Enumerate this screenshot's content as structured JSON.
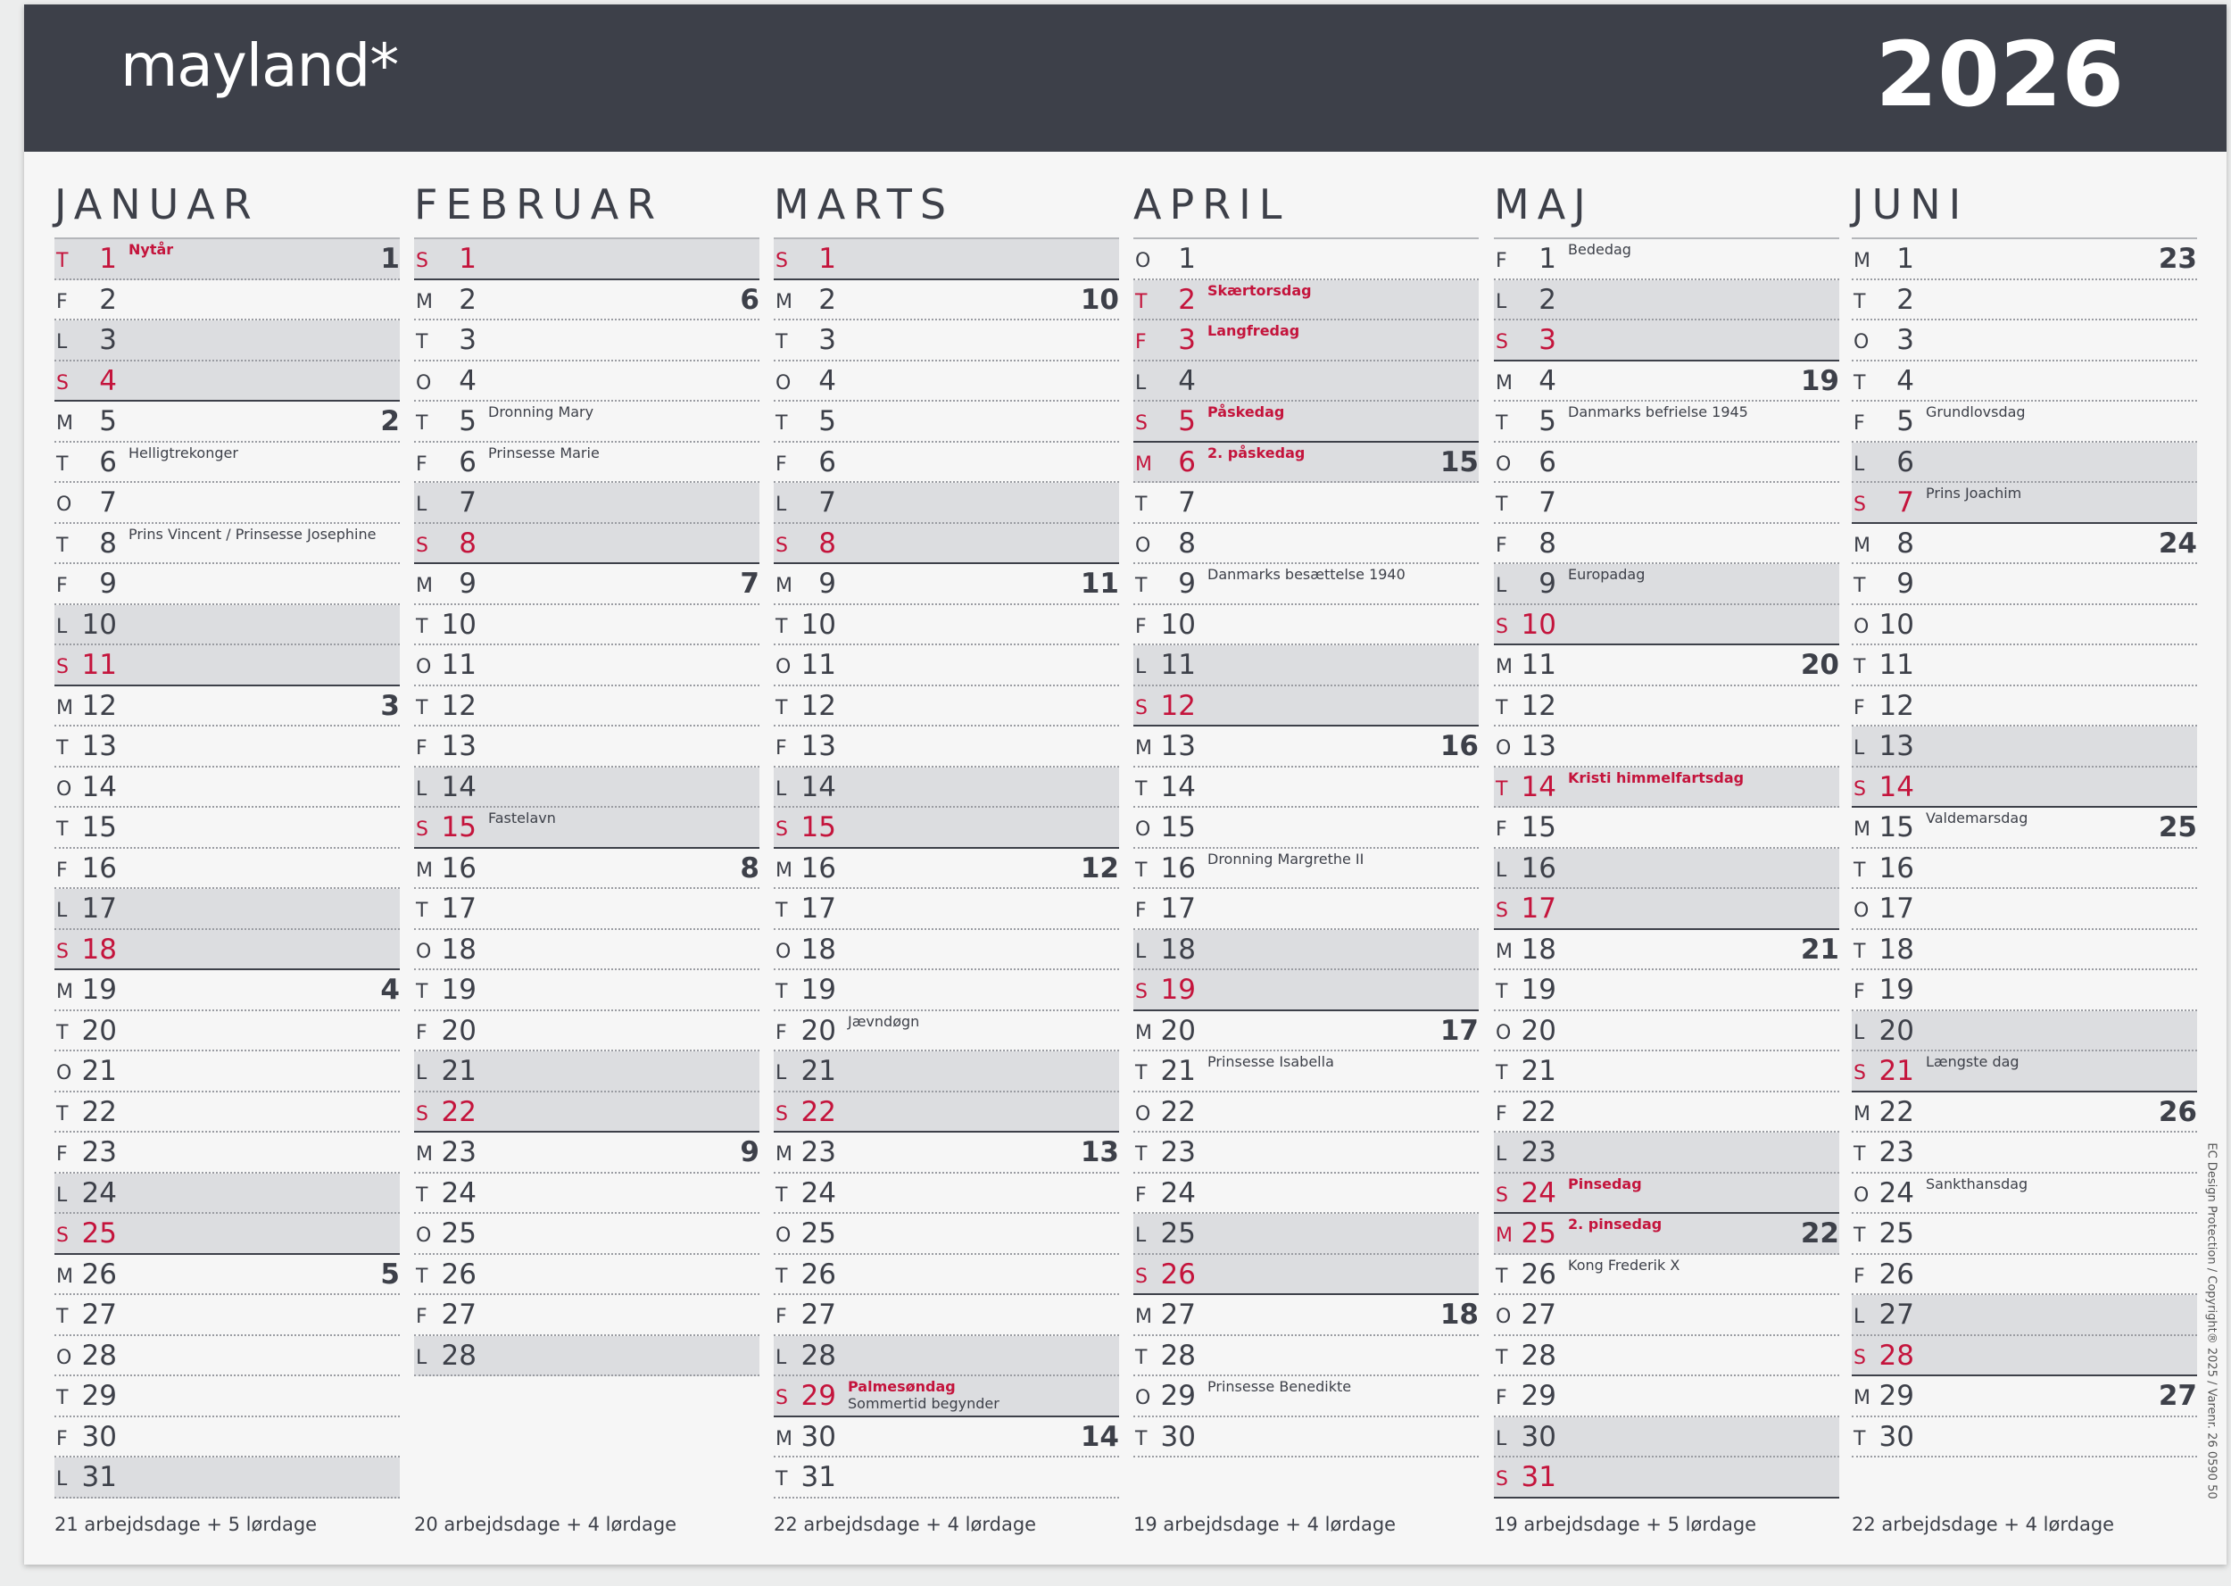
{
  "header": {
    "brand": "mayland*",
    "year": "2026"
  },
  "side_text": "EC Design Protection / Copyright® 2025 / Varenr. 26 0590 50",
  "months": [
    {
      "name": "JANUAR",
      "footer": "21 arbejdsdage + 5 lørdage",
      "days": [
        {
          "w": "T",
          "d": 1,
          "wk": 1,
          "note": "Nytår",
          "k": "hol"
        },
        {
          "w": "F",
          "d": 2
        },
        {
          "w": "L",
          "d": 3,
          "k": "sat"
        },
        {
          "w": "S",
          "d": 4,
          "k": "sun"
        },
        {
          "w": "M",
          "d": 5,
          "wk": 2
        },
        {
          "w": "T",
          "d": 6,
          "note": "Helligtrekonger"
        },
        {
          "w": "O",
          "d": 7
        },
        {
          "w": "T",
          "d": 8,
          "note": "Prins Vincent / Prinsesse Josephine"
        },
        {
          "w": "F",
          "d": 9
        },
        {
          "w": "L",
          "d": 10,
          "k": "sat"
        },
        {
          "w": "S",
          "d": 11,
          "k": "sun"
        },
        {
          "w": "M",
          "d": 12,
          "wk": 3
        },
        {
          "w": "T",
          "d": 13
        },
        {
          "w": "O",
          "d": 14
        },
        {
          "w": "T",
          "d": 15
        },
        {
          "w": "F",
          "d": 16
        },
        {
          "w": "L",
          "d": 17,
          "k": "sat"
        },
        {
          "w": "S",
          "d": 18,
          "k": "sun"
        },
        {
          "w": "M",
          "d": 19,
          "wk": 4
        },
        {
          "w": "T",
          "d": 20
        },
        {
          "w": "O",
          "d": 21
        },
        {
          "w": "T",
          "d": 22
        },
        {
          "w": "F",
          "d": 23
        },
        {
          "w": "L",
          "d": 24,
          "k": "sat"
        },
        {
          "w": "S",
          "d": 25,
          "k": "sun"
        },
        {
          "w": "M",
          "d": 26,
          "wk": 5
        },
        {
          "w": "T",
          "d": 27
        },
        {
          "w": "O",
          "d": 28
        },
        {
          "w": "T",
          "d": 29
        },
        {
          "w": "F",
          "d": 30
        },
        {
          "w": "L",
          "d": 31,
          "k": "sat"
        }
      ]
    },
    {
      "name": "FEBRUAR",
      "footer": "20 arbejdsdage + 4 lørdage",
      "days": [
        {
          "w": "S",
          "d": 1,
          "k": "sun"
        },
        {
          "w": "M",
          "d": 2,
          "wk": 6
        },
        {
          "w": "T",
          "d": 3
        },
        {
          "w": "O",
          "d": 4
        },
        {
          "w": "T",
          "d": 5,
          "note": "Dronning Mary"
        },
        {
          "w": "F",
          "d": 6,
          "note": "Prinsesse Marie"
        },
        {
          "w": "L",
          "d": 7,
          "k": "sat"
        },
        {
          "w": "S",
          "d": 8,
          "k": "sun"
        },
        {
          "w": "M",
          "d": 9,
          "wk": 7
        },
        {
          "w": "T",
          "d": 10
        },
        {
          "w": "O",
          "d": 11
        },
        {
          "w": "T",
          "d": 12
        },
        {
          "w": "F",
          "d": 13
        },
        {
          "w": "L",
          "d": 14,
          "k": "sat"
        },
        {
          "w": "S",
          "d": 15,
          "note": "Fastelavn",
          "k": "sun"
        },
        {
          "w": "M",
          "d": 16,
          "wk": 8
        },
        {
          "w": "T",
          "d": 17
        },
        {
          "w": "O",
          "d": 18
        },
        {
          "w": "T",
          "d": 19
        },
        {
          "w": "F",
          "d": 20
        },
        {
          "w": "L",
          "d": 21,
          "k": "sat"
        },
        {
          "w": "S",
          "d": 22,
          "k": "sun"
        },
        {
          "w": "M",
          "d": 23,
          "wk": 9
        },
        {
          "w": "T",
          "d": 24
        },
        {
          "w": "O",
          "d": 25
        },
        {
          "w": "T",
          "d": 26
        },
        {
          "w": "F",
          "d": 27
        },
        {
          "w": "L",
          "d": 28,
          "k": "sat"
        }
      ]
    },
    {
      "name": "MARTS",
      "footer": "22 arbejdsdage + 4 lørdage",
      "days": [
        {
          "w": "S",
          "d": 1,
          "k": "sun"
        },
        {
          "w": "M",
          "d": 2,
          "wk": 10
        },
        {
          "w": "T",
          "d": 3
        },
        {
          "w": "O",
          "d": 4
        },
        {
          "w": "T",
          "d": 5
        },
        {
          "w": "F",
          "d": 6
        },
        {
          "w": "L",
          "d": 7,
          "k": "sat"
        },
        {
          "w": "S",
          "d": 8,
          "k": "sun"
        },
        {
          "w": "M",
          "d": 9,
          "wk": 11
        },
        {
          "w": "T",
          "d": 10
        },
        {
          "w": "O",
          "d": 11
        },
        {
          "w": "T",
          "d": 12
        },
        {
          "w": "F",
          "d": 13
        },
        {
          "w": "L",
          "d": 14,
          "k": "sat"
        },
        {
          "w": "S",
          "d": 15,
          "k": "sun"
        },
        {
          "w": "M",
          "d": 16,
          "wk": 12
        },
        {
          "w": "T",
          "d": 17
        },
        {
          "w": "O",
          "d": 18
        },
        {
          "w": "T",
          "d": 19
        },
        {
          "w": "F",
          "d": 20,
          "note": "Jævndøgn"
        },
        {
          "w": "L",
          "d": 21,
          "k": "sat"
        },
        {
          "w": "S",
          "d": 22,
          "k": "sun"
        },
        {
          "w": "M",
          "d": 23,
          "wk": 13
        },
        {
          "w": "T",
          "d": 24
        },
        {
          "w": "O",
          "d": 25
        },
        {
          "w": "T",
          "d": 26
        },
        {
          "w": "F",
          "d": 27
        },
        {
          "w": "L",
          "d": 28,
          "k": "sat"
        },
        {
          "w": "S",
          "d": 29,
          "note": "Palmesøndag",
          "note2": "Sommertid begynder",
          "k": "hol"
        },
        {
          "w": "M",
          "d": 30,
          "wk": 14
        },
        {
          "w": "T",
          "d": 31
        }
      ]
    },
    {
      "name": "APRIL",
      "footer": "19 arbejdsdage + 4 lørdage",
      "days": [
        {
          "w": "O",
          "d": 1
        },
        {
          "w": "T",
          "d": 2,
          "note": "Skærtorsdag",
          "k": "hol"
        },
        {
          "w": "F",
          "d": 3,
          "note": "Langfredag",
          "k": "hol"
        },
        {
          "w": "L",
          "d": 4,
          "k": "sat"
        },
        {
          "w": "S",
          "d": 5,
          "note": "Påskedag",
          "k": "hol"
        },
        {
          "w": "M",
          "d": 6,
          "wk": 15,
          "note": "2. påskedag",
          "k": "hol"
        },
        {
          "w": "T",
          "d": 7
        },
        {
          "w": "O",
          "d": 8
        },
        {
          "w": "T",
          "d": 9,
          "note": "Danmarks besættelse 1940"
        },
        {
          "w": "F",
          "d": 10
        },
        {
          "w": "L",
          "d": 11,
          "k": "sat"
        },
        {
          "w": "S",
          "d": 12,
          "k": "sun"
        },
        {
          "w": "M",
          "d": 13,
          "wk": 16
        },
        {
          "w": "T",
          "d": 14
        },
        {
          "w": "O",
          "d": 15
        },
        {
          "w": "T",
          "d": 16,
          "note": "Dronning Margrethe II"
        },
        {
          "w": "F",
          "d": 17
        },
        {
          "w": "L",
          "d": 18,
          "k": "sat"
        },
        {
          "w": "S",
          "d": 19,
          "k": "sun"
        },
        {
          "w": "M",
          "d": 20,
          "wk": 17
        },
        {
          "w": "T",
          "d": 21,
          "note": "Prinsesse Isabella"
        },
        {
          "w": "O",
          "d": 22
        },
        {
          "w": "T",
          "d": 23
        },
        {
          "w": "F",
          "d": 24
        },
        {
          "w": "L",
          "d": 25,
          "k": "sat"
        },
        {
          "w": "S",
          "d": 26,
          "k": "sun"
        },
        {
          "w": "M",
          "d": 27,
          "wk": 18
        },
        {
          "w": "T",
          "d": 28
        },
        {
          "w": "O",
          "d": 29,
          "note": "Prinsesse Benedikte"
        },
        {
          "w": "T",
          "d": 30
        }
      ]
    },
    {
      "name": "MAJ",
      "footer": "19 arbejdsdage + 5 lørdage",
      "days": [
        {
          "w": "F",
          "d": 1,
          "note": "Bededag"
        },
        {
          "w": "L",
          "d": 2,
          "k": "sat"
        },
        {
          "w": "S",
          "d": 3,
          "k": "sun"
        },
        {
          "w": "M",
          "d": 4,
          "wk": 19
        },
        {
          "w": "T",
          "d": 5,
          "note": "Danmarks befrielse 1945"
        },
        {
          "w": "O",
          "d": 6
        },
        {
          "w": "T",
          "d": 7
        },
        {
          "w": "F",
          "d": 8
        },
        {
          "w": "L",
          "d": 9,
          "note": "Europadag",
          "k": "sat"
        },
        {
          "w": "S",
          "d": 10,
          "k": "sun"
        },
        {
          "w": "M",
          "d": 11,
          "wk": 20
        },
        {
          "w": "T",
          "d": 12
        },
        {
          "w": "O",
          "d": 13
        },
        {
          "w": "T",
          "d": 14,
          "note": "Kristi himmelfartsdag",
          "k": "hol"
        },
        {
          "w": "F",
          "d": 15
        },
        {
          "w": "L",
          "d": 16,
          "k": "sat"
        },
        {
          "w": "S",
          "d": 17,
          "k": "sun"
        },
        {
          "w": "M",
          "d": 18,
          "wk": 21
        },
        {
          "w": "T",
          "d": 19
        },
        {
          "w": "O",
          "d": 20
        },
        {
          "w": "T",
          "d": 21
        },
        {
          "w": "F",
          "d": 22
        },
        {
          "w": "L",
          "d": 23,
          "k": "sat"
        },
        {
          "w": "S",
          "d": 24,
          "note": "Pinsedag",
          "k": "hol"
        },
        {
          "w": "M",
          "d": 25,
          "wk": 22,
          "note": "2. pinsedag",
          "k": "hol"
        },
        {
          "w": "T",
          "d": 26,
          "note": "Kong Frederik X"
        },
        {
          "w": "O",
          "d": 27
        },
        {
          "w": "T",
          "d": 28
        },
        {
          "w": "F",
          "d": 29
        },
        {
          "w": "L",
          "d": 30,
          "k": "sat"
        },
        {
          "w": "S",
          "d": 31,
          "k": "sun"
        }
      ]
    },
    {
      "name": "JUNI",
      "footer": "22 arbejdsdage + 4 lørdage",
      "days": [
        {
          "w": "M",
          "d": 1,
          "wk": 23
        },
        {
          "w": "T",
          "d": 2
        },
        {
          "w": "O",
          "d": 3
        },
        {
          "w": "T",
          "d": 4
        },
        {
          "w": "F",
          "d": 5,
          "note": "Grundlovsdag"
        },
        {
          "w": "L",
          "d": 6,
          "k": "sat"
        },
        {
          "w": "S",
          "d": 7,
          "note": "Prins Joachim",
          "k": "sun"
        },
        {
          "w": "M",
          "d": 8,
          "wk": 24
        },
        {
          "w": "T",
          "d": 9
        },
        {
          "w": "O",
          "d": 10
        },
        {
          "w": "T",
          "d": 11
        },
        {
          "w": "F",
          "d": 12
        },
        {
          "w": "L",
          "d": 13,
          "k": "sat"
        },
        {
          "w": "S",
          "d": 14,
          "k": "sun"
        },
        {
          "w": "M",
          "d": 15,
          "wk": 25,
          "note": "Valdemarsdag"
        },
        {
          "w": "T",
          "d": 16
        },
        {
          "w": "O",
          "d": 17
        },
        {
          "w": "T",
          "d": 18
        },
        {
          "w": "F",
          "d": 19
        },
        {
          "w": "L",
          "d": 20,
          "k": "sat"
        },
        {
          "w": "S",
          "d": 21,
          "note": "Længste dag",
          "k": "sun"
        },
        {
          "w": "M",
          "d": 22,
          "wk": 26
        },
        {
          "w": "T",
          "d": 23
        },
        {
          "w": "O",
          "d": 24,
          "note": "Sankthansdag"
        },
        {
          "w": "T",
          "d": 25
        },
        {
          "w": "F",
          "d": 26
        },
        {
          "w": "L",
          "d": 27,
          "k": "sat"
        },
        {
          "w": "S",
          "d": 28,
          "k": "sun"
        },
        {
          "w": "M",
          "d": 29,
          "wk": 27
        },
        {
          "w": "T",
          "d": 30
        }
      ]
    }
  ]
}
